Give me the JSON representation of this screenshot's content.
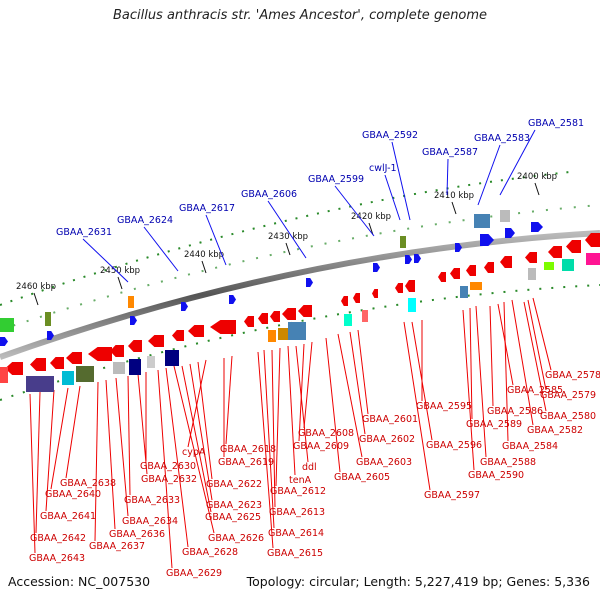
{
  "title": "Bacillus anthracis str. 'Ames Ancestor', complete genome",
  "footer": {
    "accession": "Accession: NC_007530",
    "topology": "Topology: circular; Length: 5,227,419 bp; Genes: 5,336"
  },
  "scale_ticks": [
    "2400 kbp",
    "2410 kbp",
    "2420 kbp",
    "2430 kbp",
    "2440 kbp",
    "2450 kbp",
    "2460 kbp"
  ],
  "forward_genes": [
    "GBAA_2581",
    "GBAA_2583",
    "GBAA_2587",
    "GBAA_2592",
    "cwlJ-1",
    "GBAA_2599",
    "GBAA_2606",
    "GBAA_2617",
    "GBAA_2624",
    "GBAA_2631"
  ],
  "reverse_genes": [
    "GBAA_2578",
    "GBAA_2579",
    "GBAA_2580",
    "GBAA_2582",
    "GBAA_2584",
    "GBAA_2585",
    "GBAA_2586",
    "GBAA_2588",
    "GBAA_2589",
    "GBAA_2590",
    "GBAA_2595",
    "GBAA_2596",
    "GBAA_2597",
    "GBAA_2601",
    "GBAA_2602",
    "GBAA_2603",
    "GBAA_2605",
    "GBAA_2608",
    "GBAA_2609",
    "ddl",
    "tenA",
    "GBAA_2612",
    "GBAA_2613",
    "GBAA_2614",
    "GBAA_2615",
    "GBAA_2618",
    "GBAA_2619",
    "cypA",
    "GBAA_2622",
    "GBAA_2623",
    "GBAA_2625",
    "GBAA_2626",
    "GBAA_2628",
    "GBAA_2629",
    "GBAA_2630",
    "GBAA_2632",
    "GBAA_2633",
    "GBAA_2634",
    "GBAA_2636",
    "GBAA_2637",
    "GBAA_2638",
    "GBAA_2640",
    "GBAA_2641",
    "GBAA_2642",
    "GBAA_2643"
  ],
  "colors": {
    "forward_gene": "#1010ee",
    "reverse_gene": "#ee0000",
    "backbone": "#888888",
    "cog_tick": "#1a7a1a",
    "label_forward": "#0000b0",
    "label_reverse": "#cc0000"
  }
}
